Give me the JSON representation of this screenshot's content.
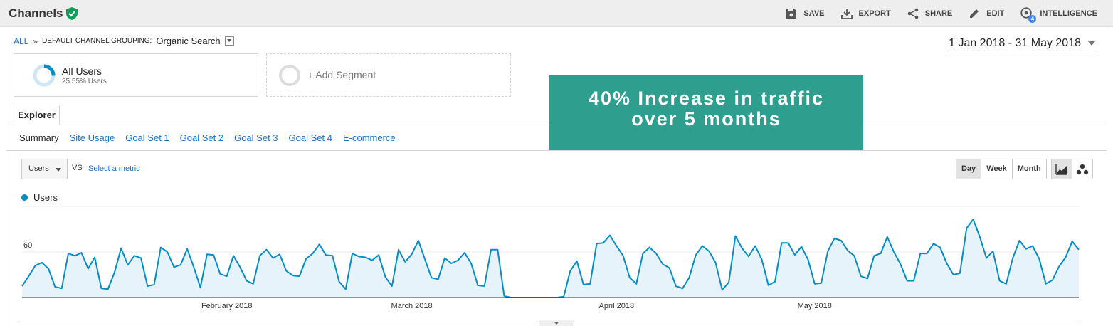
{
  "header": {
    "title": "Channels",
    "actions": [
      {
        "label": "SAVE",
        "icon": "save-icon"
      },
      {
        "label": "EXPORT",
        "icon": "export-icon"
      },
      {
        "label": "SHARE",
        "icon": "share-icon"
      },
      {
        "label": "EDIT",
        "icon": "edit-icon"
      },
      {
        "label": "INTELLIGENCE",
        "icon": "intelligence-icon",
        "badge": "4"
      }
    ]
  },
  "breadcrumb": {
    "all": "ALL",
    "separator": "»",
    "dimension": "DEFAULT CHANNEL GROUPING:",
    "value": "Organic Search"
  },
  "date_range": "1 Jan 2018 - 31 May 2018",
  "segments": {
    "primary": {
      "name": "All Users",
      "subtitle": "25.55% Users",
      "share": 0.2555
    },
    "add": "+ Add Segment"
  },
  "tabs": {
    "explorer": "Explorer"
  },
  "subtabs": [
    "Summary",
    "Site Usage",
    "Goal Set 1",
    "Goal Set 2",
    "Goal Set 3",
    "Goal Set 4",
    "E-commerce"
  ],
  "banner": {
    "line1": "40% Increase in traffic",
    "line2": "over 5 months"
  },
  "controls": {
    "metric": "Users",
    "vs": "VS",
    "select_metric": "Select a metric",
    "periods": [
      "Day",
      "Week",
      "Month"
    ],
    "active_period": "Day"
  },
  "legend": {
    "series": "Users"
  },
  "colors": {
    "series": "#058dc7",
    "area": "#e6f3fa",
    "banner": "#2e9e8f",
    "link": "#1a73c8",
    "shield": "#0f9d58"
  },
  "chart_data": {
    "type": "area",
    "y_ticks": [
      60,
      120
    ],
    "ylim": [
      0,
      120
    ],
    "x_tick_labels": [
      {
        "label": "February 2018",
        "index": 31
      },
      {
        "label": "March 2018",
        "index": 59
      },
      {
        "label": "April 2018",
        "index": 90
      },
      {
        "label": "May 2018",
        "index": 120
      }
    ],
    "start": "2018-01-01",
    "end": "2018-05-31",
    "series": [
      {
        "name": "Users",
        "values": [
          15,
          28,
          42,
          46,
          38,
          14,
          12,
          58,
          55,
          59,
          38,
          53,
          12,
          11,
          33,
          65,
          43,
          55,
          52,
          15,
          17,
          66,
          60,
          40,
          43,
          64,
          40,
          13,
          57,
          56,
          31,
          28,
          55,
          40,
          22,
          18,
          55,
          63,
          52,
          57,
          35,
          29,
          28,
          51,
          58,
          70,
          56,
          55,
          21,
          11,
          58,
          54,
          53,
          49,
          56,
          27,
          15,
          63,
          47,
          57,
          75,
          50,
          26,
          24,
          52,
          45,
          49,
          59,
          45,
          16,
          15,
          63,
          63,
          2,
          0,
          0,
          0,
          0,
          0,
          0,
          0,
          0,
          1,
          35,
          48,
          17,
          18,
          71,
          72,
          82,
          68,
          55,
          26,
          18,
          58,
          66,
          58,
          44,
          39,
          15,
          12,
          26,
          56,
          68,
          61,
          46,
          10,
          20,
          81,
          65,
          54,
          68,
          50,
          16,
          21,
          72,
          72,
          56,
          67,
          50,
          18,
          19,
          61,
          78,
          75,
          62,
          55,
          28,
          25,
          55,
          58,
          80,
          60,
          44,
          22,
          22,
          58,
          58,
          71,
          66,
          45,
          30,
          32,
          91,
          103,
          80,
          52,
          61,
          22,
          18,
          52,
          75,
          64,
          68,
          51,
          18,
          23,
          41,
          53,
          74,
          63
        ]
      }
    ]
  }
}
